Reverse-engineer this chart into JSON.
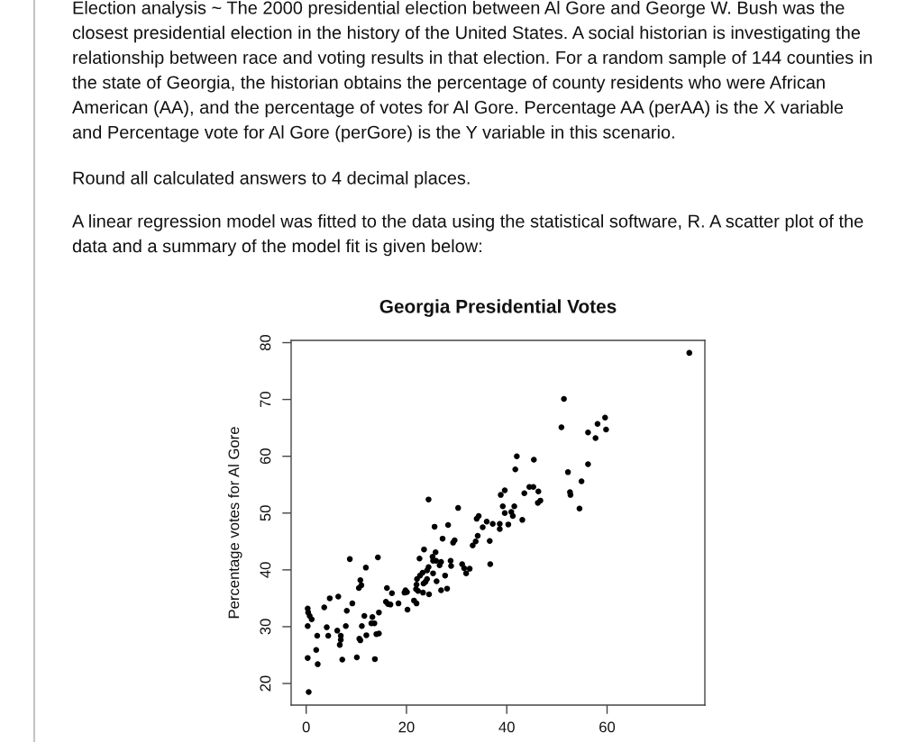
{
  "chart_data": {
    "type": "scatter",
    "title": "Georgia Presidential Votes",
    "ylabel": "Percentage votes for Al Gore",
    "annotations": [
      "Election analysis ~ The 2000 presidential election between Al Gore and George W. Bush was the closest presidential election in the history of the United States. A social historian is investigating the relationship between race and voting results in that election. For a random sample of 144 counties in the state of Georgia, the historian obtains the percentage of county residents who were African American (AA), and the percentage of votes for Al Gore. Percentage AA (perAA) is the X variable and Percentage vote for Al Gore (perGore) is the Y variable in this scenario.",
      "Round all calculated answers to 4 decimal places.",
      "A linear regression model was fitted to the data using the statistical software, R. A scatter plot of the data and a summary of the model fit is given below:"
    ],
    "x": [
      8.7,
      14.3,
      11.9,
      10.8,
      10.5,
      11.0,
      4.7,
      6.4,
      3.6,
      0.3,
      0.4,
      0.7,
      1.1,
      0.3,
      9.2,
      8.1,
      4.1,
      2.2,
      4.4,
      6.2,
      7.9,
      6.9,
      6.9,
      6.7,
      11.6,
      13.2,
      14.5,
      11.1,
      13.0,
      13.6,
      12.0,
      10.6,
      10.8,
      14.0,
      14.5,
      2.0,
      0.3,
      2.3,
      7.2,
      10.1,
      13.7,
      0.5,
      16.1,
      17.1,
      15.9,
      16.3,
      16.8,
      42.0,
      41.7,
      44.5,
      43.5,
      39.6,
      38.8,
      24.4,
      30.3,
      39.2,
      41.5,
      39.6,
      40.9,
      41.2,
      43.1,
      34.4,
      34.0,
      36.0,
      37.2,
      38.6,
      38.6,
      40.3,
      35.2,
      25.6,
      28.3,
      27.2,
      29.6,
      29.3,
      34.2,
      33.8,
      33.2,
      36.6,
      23.5,
      25.8,
      25.2,
      25.3,
      25.9,
      22.6,
      26.9,
      26.6,
      28.8,
      28.9,
      31.1,
      31.5,
      31.9,
      32.6,
      36.7,
      24.4,
      24.1,
      23.2,
      22.7,
      25.3,
      27.7,
      24.1,
      23.8,
      23.4,
      22.1,
      22.0,
      26.0,
      19.8,
      19.6,
      20.1,
      21.9,
      22.3,
      23.3,
      24.5,
      26.9,
      28.1,
      21.5,
      22.0,
      18.4,
      20.2,
      45.3,
      46.3,
      46.2,
      46.7,
      45.4,
      51.4,
      50.9,
      56.2,
      57.7,
      58.1,
      59.6,
      59.8,
      56.2,
      52.2,
      54.9,
      52.6,
      52.7,
      54.5,
      76.4
    ],
    "values": [
      41.9,
      42.2,
      40.4,
      38.2,
      36.8,
      37.3,
      35.0,
      35.3,
      33.4,
      33.2,
      32.5,
      31.9,
      31.3,
      30.1,
      34.1,
      32.8,
      29.9,
      28.4,
      28.4,
      29.3,
      30.1,
      28.4,
      27.7,
      26.8,
      31.9,
      31.7,
      32.5,
      30.1,
      30.6,
      30.6,
      28.5,
      27.9,
      27.6,
      28.7,
      28.8,
      25.9,
      24.5,
      23.4,
      24.2,
      24.6,
      24.3,
      18.5,
      36.8,
      35.9,
      34.4,
      34.0,
      33.9,
      60.0,
      57.7,
      54.6,
      53.5,
      54.0,
      53.2,
      52.4,
      50.9,
      51.2,
      51.2,
      50.0,
      50.2,
      49.5,
      48.8,
      49.5,
      49.0,
      48.5,
      48.1,
      48.1,
      47.2,
      48.0,
      47.5,
      47.6,
      47.9,
      45.5,
      45.2,
      44.8,
      46.0,
      45.0,
      44.3,
      45.1,
      43.6,
      43.1,
      42.3,
      41.6,
      41.6,
      42.0,
      41.4,
      40.8,
      41.6,
      40.7,
      41.0,
      40.3,
      39.4,
      40.2,
      41.0,
      40.5,
      39.9,
      39.5,
      39.0,
      39.4,
      39.0,
      38.4,
      37.9,
      37.6,
      38.4,
      37.4,
      38.0,
      36.4,
      36.0,
      36.1,
      36.6,
      36.3,
      36.0,
      35.7,
      36.4,
      36.7,
      34.6,
      34.1,
      34.1,
      33.0,
      54.6,
      53.8,
      51.8,
      52.2,
      59.4,
      70.1,
      65.1,
      64.2,
      63.2,
      65.7,
      66.8,
      64.7,
      58.6,
      57.2,
      55.6,
      53.7,
      53.2,
      50.8,
      78.2
    ],
    "color": "#000000",
    "marker": "circle",
    "xlim": [
      -3,
      79.5
    ],
    "ylim": [
      16.2,
      80.4
    ],
    "xticks": [
      0,
      20,
      40,
      60
    ],
    "yticks": [
      20,
      30,
      40,
      50,
      60,
      70,
      80
    ]
  }
}
